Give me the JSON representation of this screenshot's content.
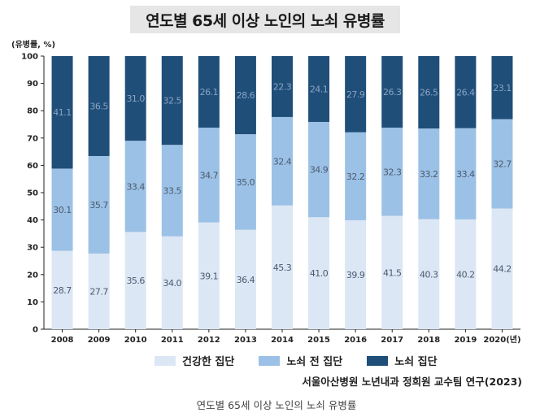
{
  "chart_data": {
    "type": "bar",
    "stacked": true,
    "title": "연도별 65세 이상 노인의 노쇠 유병률",
    "ylabel": "(유병률, %)",
    "xlabel": "",
    "ylim": [
      0,
      100
    ],
    "yticks": [
      0,
      10,
      20,
      30,
      40,
      50,
      60,
      70,
      80,
      90,
      100
    ],
    "categories": [
      "2008",
      "2009",
      "2010",
      "2011",
      "2012",
      "2013",
      "2014",
      "2015",
      "2016",
      "2017",
      "2018",
      "2019",
      "2020(년)"
    ],
    "series": [
      {
        "name": "건강한 집단",
        "color": "#dce7f5",
        "values": [
          28.7,
          27.7,
          35.6,
          34.0,
          39.1,
          36.4,
          45.3,
          41.0,
          39.9,
          41.5,
          40.3,
          40.2,
          44.2
        ]
      },
      {
        "name": "노쇠 전 집단",
        "color": "#9cc1e6",
        "values": [
          30.1,
          35.7,
          33.4,
          33.5,
          34.7,
          35.0,
          32.4,
          34.9,
          32.2,
          32.3,
          33.2,
          33.4,
          32.7
        ]
      },
      {
        "name": "노쇠 집단",
        "color": "#1f4e79",
        "values": [
          41.1,
          36.5,
          31.0,
          32.5,
          26.1,
          28.6,
          22.3,
          24.1,
          27.9,
          26.3,
          26.5,
          26.4,
          23.1
        ]
      }
    ],
    "legend_position": "bottom",
    "grid": false
  },
  "source": "서울아산병원 노년내과 정희원 교수팀 연구(2023)",
  "caption": "연도별 65세 이상 노인의 노쇠 유병률"
}
